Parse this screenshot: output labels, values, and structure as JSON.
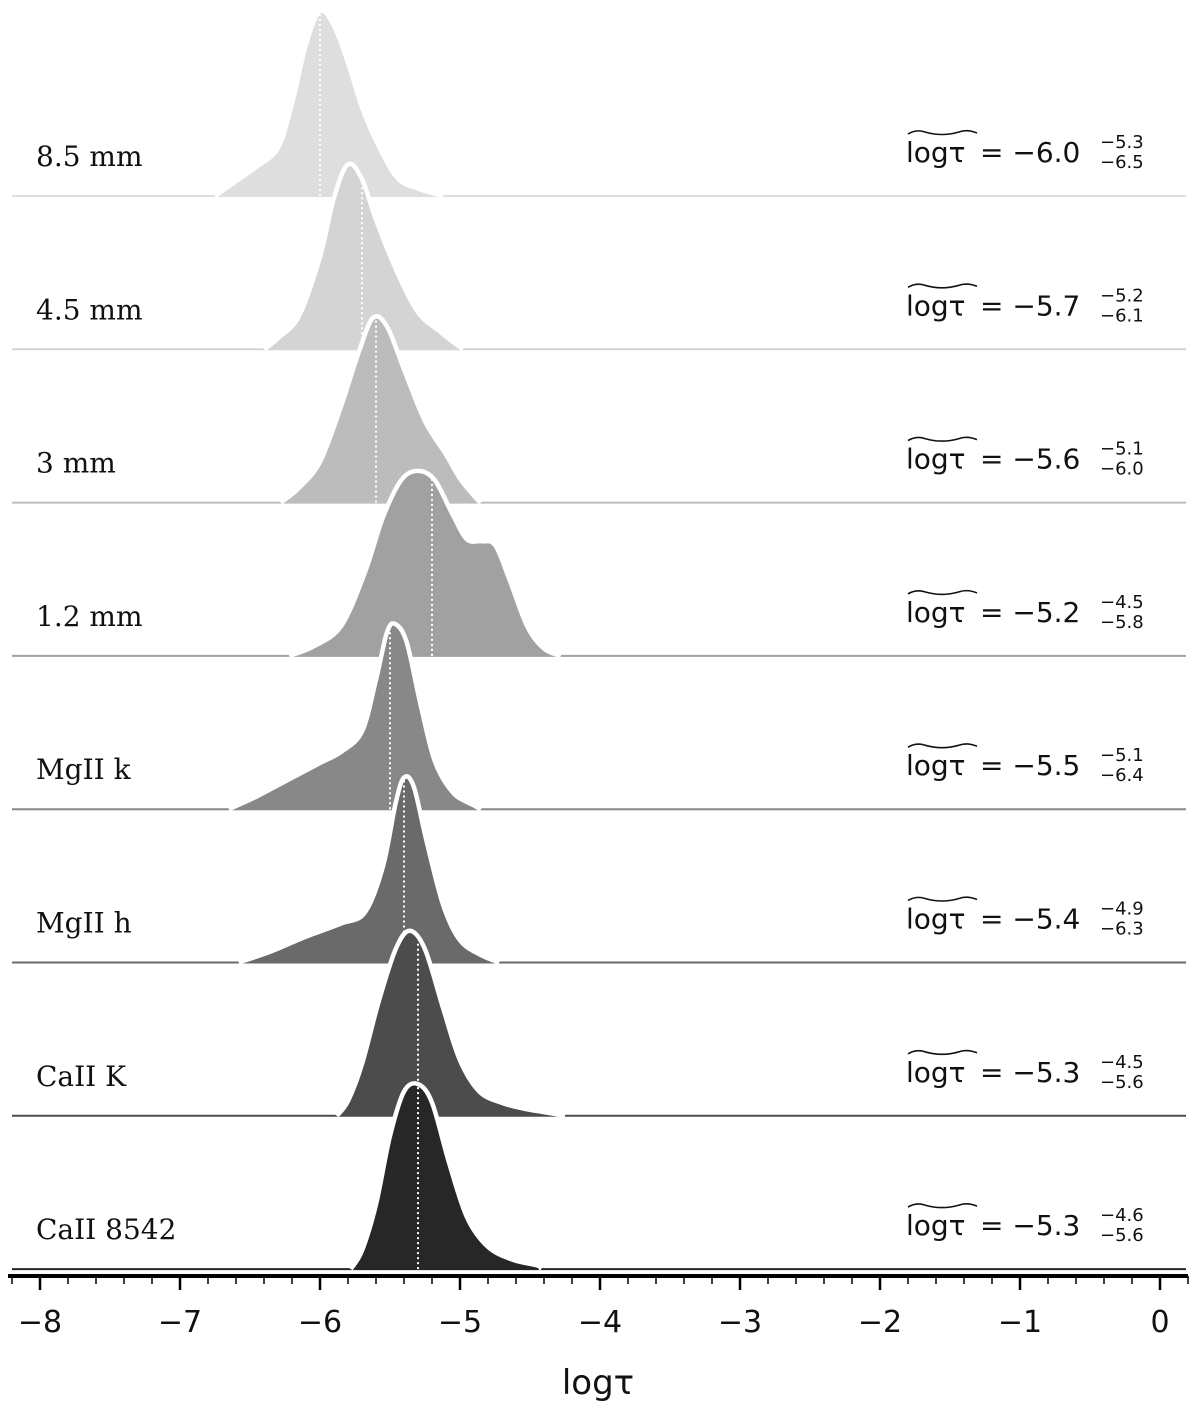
{
  "chart_data": {
    "type": "area",
    "subtype": "ridgeline",
    "xlabel": "logτ",
    "xlim": [
      -8.2,
      0.2
    ],
    "x_ticks": [
      "−8",
      "−7",
      "−6",
      "−5",
      "−4",
      "−3",
      "−2",
      "−1",
      "0"
    ],
    "x_tick_values": [
      -8,
      -7,
      -6,
      -5,
      -4,
      -3,
      -2,
      -1,
      0
    ],
    "stat_symbol": "logτ",
    "series": [
      {
        "name": "8.5 mm",
        "color": "#dedede",
        "median": -6.0,
        "upper": -5.3,
        "lower": -6.5,
        "curve": [
          [
            -6.75,
            0
          ],
          [
            -6.6,
            0.08
          ],
          [
            -6.45,
            0.16
          ],
          [
            -6.3,
            0.26
          ],
          [
            -6.2,
            0.5
          ],
          [
            -6.1,
            0.82
          ],
          [
            -6.0,
            1.0
          ],
          [
            -5.9,
            0.92
          ],
          [
            -5.8,
            0.72
          ],
          [
            -5.7,
            0.48
          ],
          [
            -5.6,
            0.3
          ],
          [
            -5.45,
            0.1
          ],
          [
            -5.3,
            0.04
          ],
          [
            -5.12,
            0
          ]
        ]
      },
      {
        "name": "4.5 mm",
        "color": "#d4d4d4",
        "median": -5.7,
        "upper": -5.2,
        "lower": -6.1,
        "curve": [
          [
            -6.4,
            0
          ],
          [
            -6.3,
            0.06
          ],
          [
            -6.15,
            0.18
          ],
          [
            -6.0,
            0.5
          ],
          [
            -5.9,
            0.82
          ],
          [
            -5.8,
            1.0
          ],
          [
            -5.7,
            0.92
          ],
          [
            -5.6,
            0.7
          ],
          [
            -5.45,
            0.42
          ],
          [
            -5.3,
            0.2
          ],
          [
            -5.15,
            0.1
          ],
          [
            -5.05,
            0.04
          ],
          [
            -4.98,
            0
          ]
        ]
      },
      {
        "name": "3 mm",
        "color": "#bcbcbc",
        "median": -5.6,
        "upper": -5.1,
        "lower": -6.0,
        "curve": [
          [
            -6.28,
            0
          ],
          [
            -6.15,
            0.08
          ],
          [
            -6.0,
            0.22
          ],
          [
            -5.85,
            0.52
          ],
          [
            -5.72,
            0.82
          ],
          [
            -5.62,
            1.0
          ],
          [
            -5.52,
            0.95
          ],
          [
            -5.4,
            0.72
          ],
          [
            -5.25,
            0.44
          ],
          [
            -5.1,
            0.26
          ],
          [
            -5.0,
            0.13
          ],
          [
            -4.88,
            0.02
          ],
          [
            -4.85,
            0
          ]
        ]
      },
      {
        "name": "1.2 mm",
        "color": "#a1a1a1",
        "median": -5.2,
        "upper": -4.5,
        "lower": -5.8,
        "curve": [
          [
            -6.22,
            0
          ],
          [
            -6.05,
            0.05
          ],
          [
            -5.85,
            0.16
          ],
          [
            -5.68,
            0.45
          ],
          [
            -5.55,
            0.75
          ],
          [
            -5.42,
            0.95
          ],
          [
            -5.3,
            1.0
          ],
          [
            -5.18,
            0.95
          ],
          [
            -5.05,
            0.76
          ],
          [
            -4.95,
            0.63
          ],
          [
            -4.85,
            0.62
          ],
          [
            -4.75,
            0.6
          ],
          [
            -4.65,
            0.42
          ],
          [
            -4.52,
            0.16
          ],
          [
            -4.4,
            0.04
          ],
          [
            -4.28,
            0
          ]
        ]
      },
      {
        "name": "MgII k",
        "color": "#888888",
        "median": -5.5,
        "upper": -5.1,
        "lower": -6.4,
        "curve": [
          [
            -6.65,
            0
          ],
          [
            -6.45,
            0.07
          ],
          [
            -6.2,
            0.17
          ],
          [
            -6.0,
            0.25
          ],
          [
            -5.85,
            0.31
          ],
          [
            -5.7,
            0.42
          ],
          [
            -5.6,
            0.7
          ],
          [
            -5.52,
            0.96
          ],
          [
            -5.46,
            1.0
          ],
          [
            -5.38,
            0.9
          ],
          [
            -5.28,
            0.56
          ],
          [
            -5.18,
            0.26
          ],
          [
            -5.05,
            0.09
          ],
          [
            -4.9,
            0.02
          ],
          [
            -4.85,
            0
          ]
        ]
      },
      {
        "name": "MgII h",
        "color": "#6a6a6a",
        "median": -5.4,
        "upper": -4.9,
        "lower": -6.3,
        "curve": [
          [
            -6.58,
            0
          ],
          [
            -6.35,
            0.06
          ],
          [
            -6.1,
            0.14
          ],
          [
            -5.85,
            0.21
          ],
          [
            -5.68,
            0.27
          ],
          [
            -5.55,
            0.52
          ],
          [
            -5.46,
            0.86
          ],
          [
            -5.4,
            1.0
          ],
          [
            -5.33,
            0.95
          ],
          [
            -5.24,
            0.66
          ],
          [
            -5.12,
            0.31
          ],
          [
            -5.0,
            0.12
          ],
          [
            -4.85,
            0.04
          ],
          [
            -4.72,
            0
          ]
        ]
      },
      {
        "name": "CaII K",
        "color": "#4c4c4c",
        "median": -5.3,
        "upper": -4.5,
        "lower": -5.6,
        "curve": [
          [
            -5.88,
            0
          ],
          [
            -5.8,
            0.08
          ],
          [
            -5.7,
            0.28
          ],
          [
            -5.58,
            0.62
          ],
          [
            -5.46,
            0.9
          ],
          [
            -5.36,
            1.0
          ],
          [
            -5.25,
            0.9
          ],
          [
            -5.12,
            0.58
          ],
          [
            -5.0,
            0.3
          ],
          [
            -4.86,
            0.13
          ],
          [
            -4.7,
            0.07
          ],
          [
            -4.55,
            0.04
          ],
          [
            -4.4,
            0.02
          ],
          [
            -4.25,
            0
          ]
        ]
      },
      {
        "name": "CaII 8542",
        "color": "#272727",
        "median": -5.3,
        "upper": -4.6,
        "lower": -5.6,
        "curve": [
          [
            -5.78,
            0
          ],
          [
            -5.7,
            0.1
          ],
          [
            -5.6,
            0.35
          ],
          [
            -5.5,
            0.72
          ],
          [
            -5.4,
            0.96
          ],
          [
            -5.3,
            1.0
          ],
          [
            -5.2,
            0.9
          ],
          [
            -5.08,
            0.58
          ],
          [
            -4.95,
            0.28
          ],
          [
            -4.8,
            0.12
          ],
          [
            -4.62,
            0.05
          ],
          [
            -4.45,
            0.02
          ],
          [
            -4.42,
            0
          ]
        ]
      }
    ]
  }
}
